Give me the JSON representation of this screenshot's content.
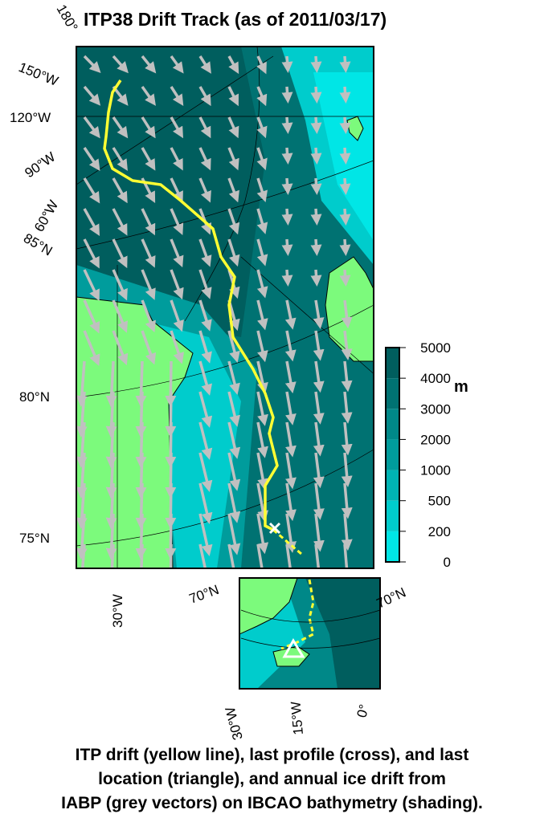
{
  "title": "ITP38 Drift Track (as of 2011/03/17)",
  "main_map": {
    "lon_labels_left": [
      "180°",
      "150°W",
      "120°W",
      "90°W",
      "60°W"
    ],
    "lat_labels_left": [
      "85°N",
      "80°N",
      "75°N"
    ],
    "lon_label_bottom": "30°W",
    "colors": {
      "land": "#7cfa7c",
      "track": "#ffff33",
      "vectors": "#c0c0c0",
      "last_profile": "#ffffff"
    }
  },
  "inset_map": {
    "lat_labels": [
      "70°N",
      "70°N"
    ],
    "lon_labels_bottom": [
      "30°W",
      "15°W",
      "0°"
    ]
  },
  "colorbar": {
    "unit": "m",
    "ticks": [
      "5000",
      "4000",
      "3000",
      "2000",
      "1000",
      "500",
      "200",
      "0"
    ],
    "colors": [
      "#00e6e6",
      "#00cccc",
      "#00b4b4",
      "#009c9c",
      "#008888",
      "#007272",
      "#005e5e"
    ]
  },
  "caption": {
    "line1": "ITP drift (yellow line), last profile (cross), and last",
    "line2": "location (triangle), and annual ice drift from",
    "line3": "IABP (grey vectors) on IBCAO bathymetry (shading)."
  }
}
